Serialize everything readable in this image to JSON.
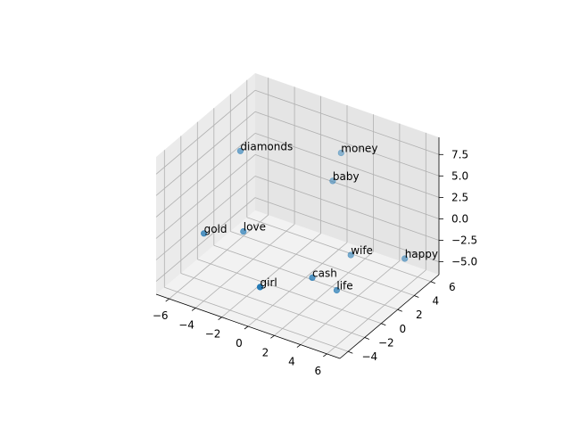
{
  "chart_data": {
    "type": "scatter",
    "projection": "3d",
    "title": "",
    "xlabel": "",
    "ylabel": "",
    "zlabel": "",
    "grid": true,
    "legend": false,
    "marker_color": "#1f77b4",
    "x_ticks": [
      "−6",
      "−4",
      "−2",
      "0",
      "2",
      "4",
      "6"
    ],
    "y_ticks": [
      "−4",
      "−2",
      "0",
      "2",
      "4",
      "6"
    ],
    "z_ticks": [
      "−5.0",
      "−2.5",
      "0.0",
      "2.5",
      "5.0",
      "7.5"
    ],
    "xlim": [
      -7,
      7
    ],
    "ylim": [
      -5,
      7
    ],
    "zlim": [
      -6.5,
      9.5
    ],
    "points": [
      {
        "label": "money",
        "x": 0.8,
        "y": 5.0,
        "z": 6.0
      },
      {
        "label": "baby",
        "x": 0.6,
        "y": 4.3,
        "z": 3.2
      },
      {
        "label": "diamonds",
        "x": -5.3,
        "y": 2.5,
        "z": 5.0
      },
      {
        "label": "happy",
        "x": 6.6,
        "y": 3.5,
        "z": -2.0
      },
      {
        "label": "gold",
        "x": -6.0,
        "y": -0.8,
        "z": -2.3
      },
      {
        "label": "love",
        "x": -4.0,
        "y": 0.8,
        "z": -2.3
      },
      {
        "label": "wife",
        "x": 2.8,
        "y": 3.0,
        "z": -3.2
      },
      {
        "label": "cash",
        "x": 2.0,
        "y": -0.4,
        "z": -3.5
      },
      {
        "label": "life",
        "x": 3.3,
        "y": 0.5,
        "z": -5.0
      },
      {
        "label": "girl",
        "x": 0.6,
        "y": -4.5,
        "z": -2.0
      }
    ]
  }
}
